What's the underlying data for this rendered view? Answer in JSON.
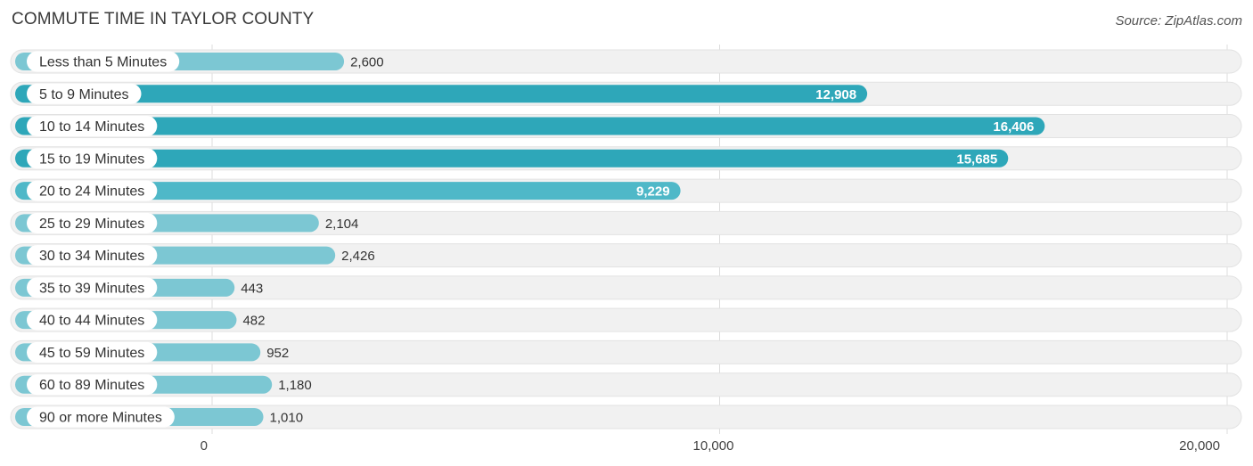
{
  "header": {
    "title": "COMMUTE TIME IN TAYLOR COUNTY",
    "source": "Source: ZipAtlas.com"
  },
  "colors": {
    "bar_light": "#7cc7d3",
    "bar_dark": "#2ea7b9",
    "row_bg": "#f1f1f1"
  },
  "chart_data": {
    "type": "bar",
    "orientation": "horizontal",
    "categories": [
      "Less than 5 Minutes",
      "5 to 9 Minutes",
      "10 to 14 Minutes",
      "15 to 19 Minutes",
      "20 to 24 Minutes",
      "25 to 29 Minutes",
      "30 to 34 Minutes",
      "35 to 39 Minutes",
      "40 to 44 Minutes",
      "45 to 59 Minutes",
      "60 to 89 Minutes",
      "90 or more Minutes"
    ],
    "values": [
      2600,
      12908,
      16406,
      15685,
      9229,
      2104,
      2426,
      443,
      482,
      952,
      1180,
      1010
    ],
    "value_labels": [
      "2,600",
      "12,908",
      "16,406",
      "15,685",
      "9,229",
      "2,104",
      "2,426",
      "443",
      "482",
      "952",
      "1,180",
      "1,010"
    ],
    "xlim": [
      0,
      20000
    ],
    "ticks": [
      0,
      10000,
      20000
    ],
    "tick_labels": [
      "0",
      "10,000",
      "20,000"
    ],
    "grid": true,
    "legend": "none"
  }
}
